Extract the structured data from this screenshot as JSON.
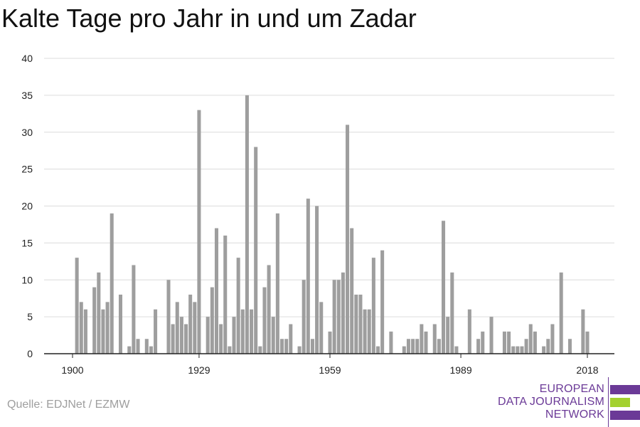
{
  "title": "Kalte Tage pro Jahr in und um Zadar",
  "source": "Quelle: EDJNet / EZMW",
  "logo": {
    "lines": [
      "EUROPEAN",
      "DATA JOURNALISM",
      "NETWORK"
    ],
    "colors": {
      "purple": "#6b3a97",
      "green": "#a3d12f"
    }
  },
  "colors": {
    "bar": "#9e9e9e",
    "grid": "#dcdcdc",
    "axis": "#222222"
  },
  "chart_data": {
    "type": "bar",
    "x_ticks": [
      1900,
      1929,
      1959,
      1989,
      2018
    ],
    "y_ticks": [
      0,
      5,
      10,
      15,
      20,
      25,
      30,
      35,
      40
    ],
    "ylim": [
      0,
      40
    ],
    "xlim": [
      1900,
      2018
    ],
    "grid": true,
    "years": [
      1900,
      1901,
      1902,
      1903,
      1904,
      1905,
      1906,
      1907,
      1908,
      1909,
      1910,
      1911,
      1912,
      1913,
      1914,
      1915,
      1916,
      1917,
      1918,
      1919,
      1920,
      1921,
      1922,
      1923,
      1924,
      1925,
      1926,
      1927,
      1928,
      1929,
      1930,
      1931,
      1932,
      1933,
      1934,
      1935,
      1936,
      1937,
      1938,
      1939,
      1940,
      1941,
      1942,
      1943,
      1944,
      1945,
      1946,
      1947,
      1948,
      1949,
      1950,
      1951,
      1952,
      1953,
      1954,
      1955,
      1956,
      1957,
      1958,
      1959,
      1960,
      1961,
      1962,
      1963,
      1964,
      1965,
      1966,
      1967,
      1968,
      1969,
      1970,
      1971,
      1972,
      1973,
      1974,
      1975,
      1976,
      1977,
      1978,
      1979,
      1980,
      1981,
      1982,
      1983,
      1984,
      1985,
      1986,
      1987,
      1988,
      1989,
      1990,
      1991,
      1992,
      1993,
      1994,
      1995,
      1996,
      1997,
      1998,
      1999,
      2000,
      2001,
      2002,
      2003,
      2004,
      2005,
      2006,
      2007,
      2008,
      2009,
      2010,
      2011,
      2012,
      2013,
      2014,
      2015,
      2016,
      2017,
      2018
    ],
    "values": [
      0,
      13,
      7,
      6,
      0,
      9,
      11,
      6,
      7,
      19,
      0,
      8,
      0,
      1,
      12,
      2,
      0,
      2,
      1,
      6,
      0,
      0,
      10,
      4,
      7,
      5,
      4,
      8,
      7,
      33,
      0,
      5,
      9,
      17,
      4,
      16,
      1,
      5,
      13,
      6,
      35,
      6,
      28,
      1,
      9,
      12,
      5,
      19,
      2,
      2,
      4,
      0,
      1,
      10,
      21,
      2,
      20,
      7,
      0,
      3,
      10,
      10,
      11,
      31,
      17,
      8,
      8,
      6,
      6,
      13,
      1,
      14,
      0,
      3,
      0,
      0,
      1,
      2,
      2,
      2,
      4,
      3,
      0,
      4,
      2,
      18,
      5,
      11,
      1,
      0,
      0,
      6,
      0,
      2,
      3,
      0,
      5,
      0,
      0,
      3,
      3,
      1,
      1,
      1,
      2,
      4,
      3,
      0,
      1,
      2,
      4,
      0,
      11,
      0,
      2,
      0,
      0,
      6,
      3
    ]
  }
}
